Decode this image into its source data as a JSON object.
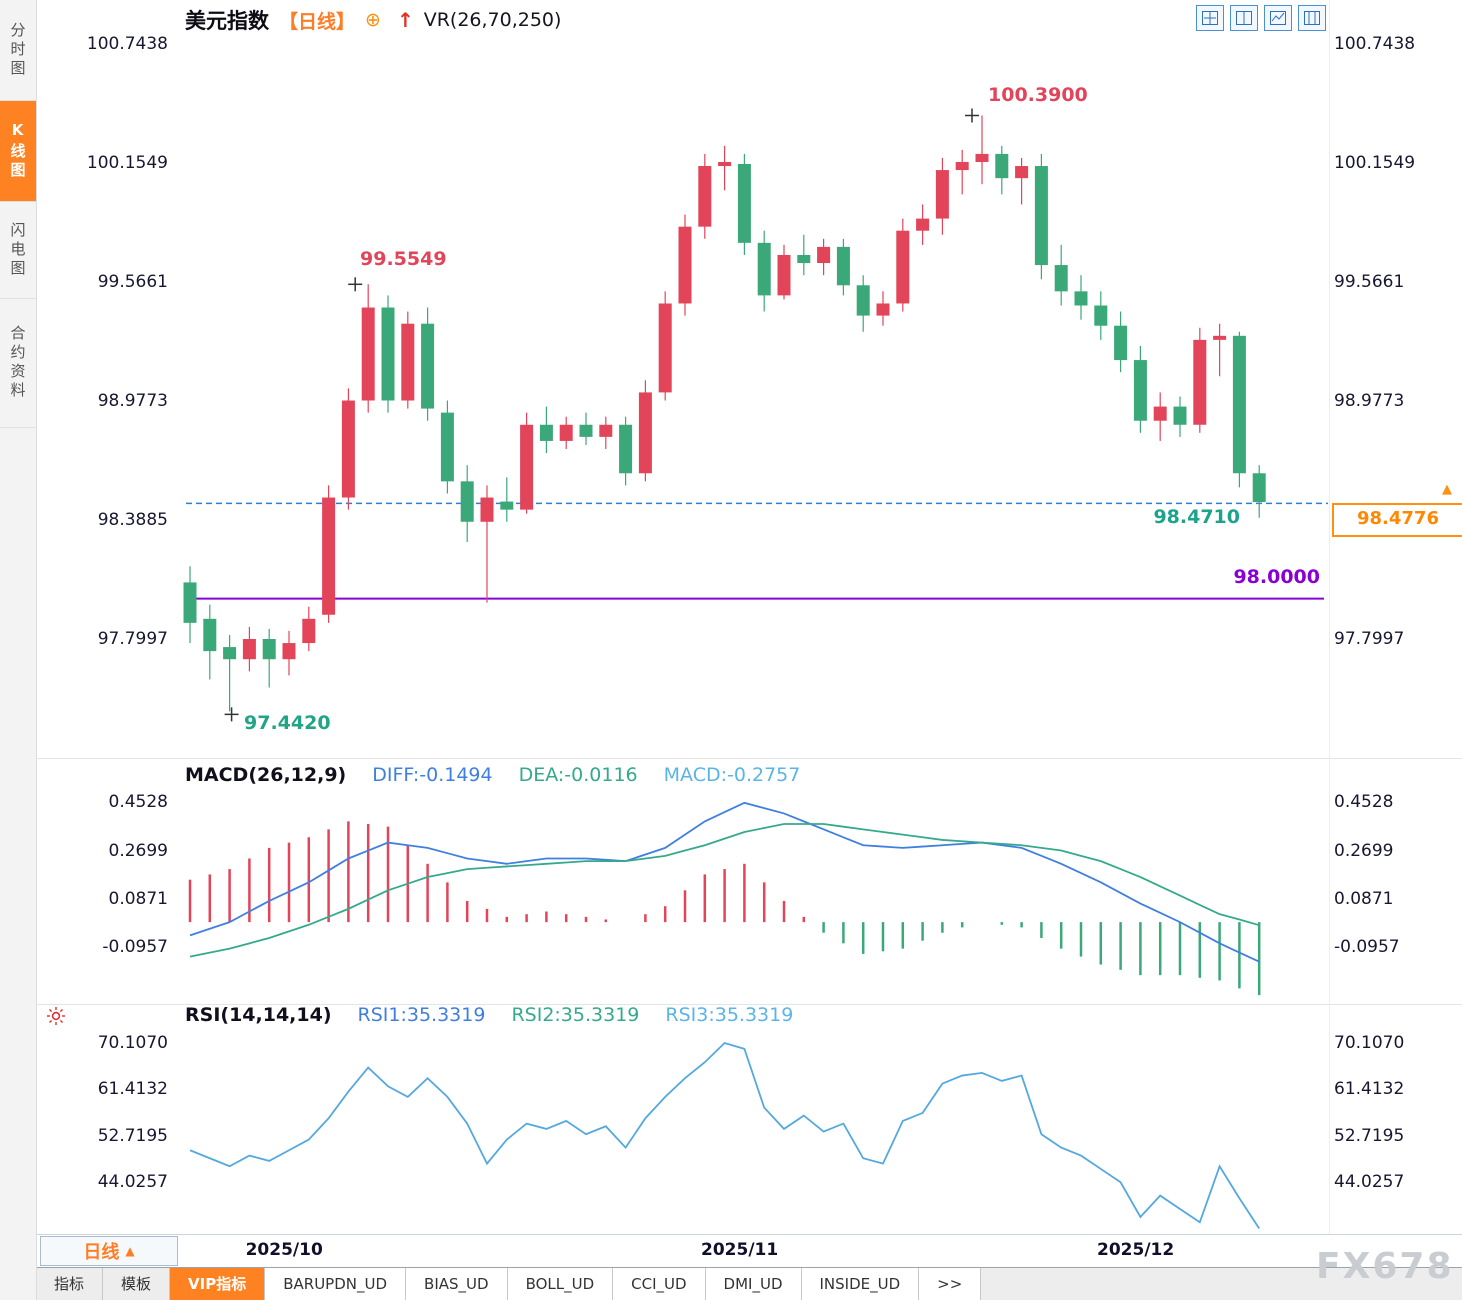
{
  "header": {
    "title": "美元指数",
    "period": "【日线】",
    "plus_icon": "⊕",
    "up_arrow": "↑",
    "indicator": "VR(26,70,250)"
  },
  "sidebar": {
    "items": [
      {
        "label": "分时图",
        "active": false
      },
      {
        "label": "K线图",
        "active": true
      },
      {
        "label": "闪电图",
        "active": false
      },
      {
        "label": "合约资料",
        "active": false
      }
    ]
  },
  "toolbar": {
    "layout_buttons": [
      "layout-quad-button",
      "layout-vsplit-button",
      "layout-chart-button",
      "layout-columns-button"
    ]
  },
  "bottom": {
    "period_box": {
      "label": "日线",
      "arrow": "▲"
    },
    "tabs": [
      {
        "label": "指标",
        "type": "muted"
      },
      {
        "label": "模板",
        "type": "muted"
      },
      {
        "label": "VIP指标",
        "type": "active"
      },
      {
        "label": "BARUPDN_UD",
        "type": "plain"
      },
      {
        "label": "BIAS_UD",
        "type": "plain"
      },
      {
        "label": "BOLL_UD",
        "type": "plain"
      },
      {
        "label": "CCI_UD",
        "type": "plain"
      },
      {
        "label": "DMI_UD",
        "type": "plain"
      },
      {
        "label": "INSIDE_UD",
        "type": "plain"
      },
      {
        "label": ">>",
        "type": "plain"
      }
    ],
    "watermark": "FX678"
  },
  "colors": {
    "up": "#e2455a",
    "down": "#3aa878",
    "accent_orange": "#ff7d26",
    "purple_line": "#8a00d4",
    "dashed_line": "#2f7fd1",
    "diff_blue": "#3f7fe0",
    "dea_green": "#35a98c",
    "macd_cyan": "#5ab4e8",
    "rsi_line": "#54a8e0",
    "marker": "#333333"
  },
  "chart_data": [
    {
      "type": "candlestick",
      "title": "美元指数 日线",
      "legend_position": "top-left",
      "grid": false,
      "y_range": [
        97.24,
        100.81
      ],
      "y_ticks": [
        "100.7438",
        "100.1549",
        "99.5661",
        "98.9773",
        "98.3885",
        "97.7997"
      ],
      "x_ticks": [
        {
          "label": "2025/10",
          "index": 4
        },
        {
          "label": "2025/11",
          "index": 27
        },
        {
          "label": "2025/12",
          "index": 47
        }
      ],
      "annotations": {
        "high1": {
          "text": "99.5549",
          "index": 9,
          "value": 99.5549
        },
        "high2": {
          "text": "100.3900",
          "index": 40,
          "value": 100.39
        },
        "low1": {
          "text": "97.4420",
          "index": 2,
          "value": 97.442
        },
        "current_line": {
          "value": 98.471,
          "label": "98.4710"
        },
        "support_line": {
          "value": 98.0,
          "label": "98.0000"
        },
        "price_tag": {
          "label": "98.4776",
          "arrow": "▲"
        }
      },
      "candles": [
        [
          98.08,
          98.16,
          97.78,
          97.88
        ],
        [
          97.9,
          97.97,
          97.6,
          97.74
        ],
        [
          97.76,
          97.82,
          97.442,
          97.7
        ],
        [
          97.7,
          97.86,
          97.64,
          97.8
        ],
        [
          97.8,
          97.85,
          97.56,
          97.7
        ],
        [
          97.7,
          97.84,
          97.62,
          97.78
        ],
        [
          97.78,
          97.96,
          97.74,
          97.9
        ],
        [
          97.92,
          98.56,
          97.88,
          98.5
        ],
        [
          98.5,
          99.04,
          98.44,
          98.98
        ],
        [
          98.98,
          99.5549,
          98.92,
          99.44
        ],
        [
          99.44,
          99.5,
          98.92,
          98.98
        ],
        [
          98.98,
          99.42,
          98.94,
          99.36
        ],
        [
          99.36,
          99.44,
          98.88,
          98.94
        ],
        [
          98.92,
          98.98,
          98.52,
          98.58
        ],
        [
          98.58,
          98.66,
          98.28,
          98.38
        ],
        [
          98.38,
          98.56,
          97.98,
          98.5
        ],
        [
          98.48,
          98.6,
          98.38,
          98.44
        ],
        [
          98.44,
          98.92,
          98.42,
          98.86
        ],
        [
          98.86,
          98.95,
          98.72,
          98.78
        ],
        [
          98.78,
          98.9,
          98.74,
          98.86
        ],
        [
          98.86,
          98.92,
          98.76,
          98.8
        ],
        [
          98.8,
          98.9,
          98.74,
          98.86
        ],
        [
          98.86,
          98.9,
          98.56,
          98.62
        ],
        [
          98.62,
          99.08,
          98.58,
          99.02
        ],
        [
          99.02,
          99.52,
          98.98,
          99.46
        ],
        [
          99.46,
          99.9,
          99.4,
          99.84
        ],
        [
          99.84,
          100.2,
          99.78,
          100.14
        ],
        [
          100.14,
          100.24,
          100.02,
          100.16
        ],
        [
          100.15,
          100.2,
          99.7,
          99.76
        ],
        [
          99.76,
          99.82,
          99.42,
          99.5
        ],
        [
          99.5,
          99.75,
          99.48,
          99.7
        ],
        [
          99.7,
          99.8,
          99.6,
          99.66
        ],
        [
          99.66,
          99.78,
          99.6,
          99.74
        ],
        [
          99.74,
          99.78,
          99.5,
          99.55
        ],
        [
          99.55,
          99.6,
          99.32,
          99.4
        ],
        [
          99.4,
          99.52,
          99.35,
          99.46
        ],
        [
          99.46,
          99.88,
          99.42,
          99.82
        ],
        [
          99.82,
          99.95,
          99.75,
          99.88
        ],
        [
          99.88,
          100.18,
          99.8,
          100.12
        ],
        [
          100.12,
          100.22,
          100.0,
          100.16
        ],
        [
          100.16,
          100.39,
          100.05,
          100.2
        ],
        [
          100.2,
          100.24,
          100.0,
          100.08
        ],
        [
          100.08,
          100.18,
          99.95,
          100.14
        ],
        [
          100.14,
          100.2,
          99.58,
          99.65
        ],
        [
          99.65,
          99.75,
          99.45,
          99.52
        ],
        [
          99.52,
          99.6,
          99.38,
          99.45
        ],
        [
          99.45,
          99.52,
          99.28,
          99.35
        ],
        [
          99.35,
          99.42,
          99.12,
          99.18
        ],
        [
          99.18,
          99.25,
          98.82,
          98.88
        ],
        [
          98.88,
          99.02,
          98.78,
          98.95
        ],
        [
          98.95,
          99.0,
          98.8,
          98.86
        ],
        [
          98.86,
          99.34,
          98.82,
          99.28
        ],
        [
          99.28,
          99.36,
          99.1,
          99.3
        ],
        [
          99.3,
          99.32,
          98.55,
          98.62
        ],
        [
          98.62,
          98.66,
          98.4,
          98.4776
        ]
      ]
    },
    {
      "type": "macd",
      "label": "MACD(26,12,9)",
      "values_labels": {
        "diff": "DIFF:-0.1494",
        "dea": "DEA:-0.0116",
        "macd": "MACD:-0.2757"
      },
      "y_ticks": [
        "0.4528",
        "0.2699",
        "0.0871",
        "-0.0957"
      ],
      "y_range": [
        -0.3,
        0.48
      ],
      "histogram_rule": "macd = 2 * (diff - dea)",
      "diff": [
        -0.05,
        -0.025,
        0.0,
        0.04,
        0.08,
        0.115,
        0.15,
        0.195,
        0.24,
        0.27,
        0.3,
        0.29,
        0.28,
        0.26,
        0.24,
        0.23,
        0.22,
        0.23,
        0.24,
        0.24,
        0.24,
        0.235,
        0.23,
        0.255,
        0.28,
        0.33,
        0.38,
        0.415,
        0.45,
        0.43,
        0.41,
        0.38,
        0.35,
        0.32,
        0.29,
        0.285,
        0.28,
        0.285,
        0.29,
        0.295,
        0.3,
        0.29,
        0.28,
        0.25,
        0.22,
        0.185,
        0.15,
        0.11,
        0.07,
        0.035,
        0.0,
        -0.04,
        -0.08,
        -0.115,
        -0.1494
      ],
      "dea": [
        -0.13,
        -0.115,
        -0.1,
        -0.08,
        -0.06,
        -0.035,
        -0.01,
        0.02,
        0.05,
        0.085,
        0.12,
        0.145,
        0.17,
        0.185,
        0.2,
        0.205,
        0.21,
        0.215,
        0.22,
        0.225,
        0.23,
        0.23,
        0.23,
        0.24,
        0.25,
        0.27,
        0.29,
        0.315,
        0.34,
        0.355,
        0.37,
        0.37,
        0.37,
        0.36,
        0.35,
        0.34,
        0.33,
        0.32,
        0.31,
        0.305,
        0.3,
        0.295,
        0.29,
        0.28,
        0.27,
        0.25,
        0.23,
        0.2,
        0.17,
        0.135,
        0.1,
        0.065,
        0.03,
        0.01,
        -0.0116
      ]
    },
    {
      "type": "line",
      "label": "RSI(14,14,14)",
      "values_labels": {
        "rsi1": "RSI1:35.3319",
        "rsi2": "RSI2:35.3319",
        "rsi3": "RSI3:35.3319"
      },
      "y_ticks": [
        "70.1070",
        "61.4132",
        "52.7195",
        "44.0257"
      ],
      "y_range": [
        34.7,
        71.0
      ],
      "rsi": [
        50,
        48.5,
        47,
        49,
        48,
        50,
        52,
        56,
        61,
        65.5,
        62,
        60,
        63.5,
        60,
        55,
        47.5,
        52,
        55,
        54,
        55.5,
        53,
        54.5,
        50.5,
        56,
        60,
        63.5,
        66.5,
        70.1,
        69,
        58,
        54,
        56.5,
        53.5,
        55,
        48.5,
        47.5,
        55.5,
        57,
        62.5,
        64,
        64.5,
        63,
        64,
        53,
        50.5,
        49,
        46.5,
        44,
        37.5,
        41.5,
        39,
        36.5,
        47,
        41,
        35.33
      ]
    }
  ]
}
